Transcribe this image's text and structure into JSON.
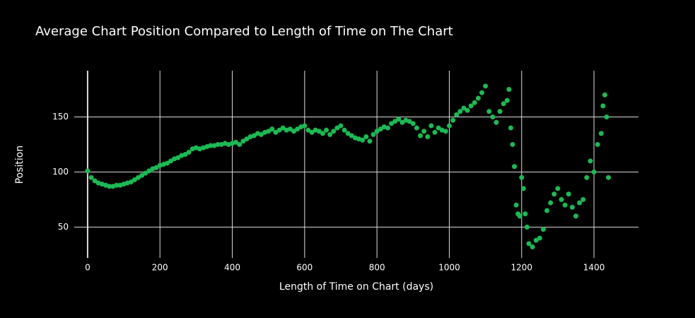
{
  "chart_data": {
    "type": "scatter",
    "title": "Average Chart Position Compared to Length of Time on The Chart",
    "x_label": "Length of Time on Chart (days)",
    "y_label": "Position",
    "series": [
      {
        "name": "Position",
        "color": "#1db954",
        "x": [
          0,
          10,
          20,
          30,
          40,
          50,
          60,
          70,
          80,
          90,
          100,
          110,
          120,
          130,
          140,
          150,
          160,
          170,
          180,
          190,
          200,
          210,
          220,
          230,
          240,
          250,
          260,
          270,
          280,
          290,
          300,
          310,
          320,
          330,
          340,
          350,
          360,
          370,
          380,
          390,
          400,
          410,
          420,
          430,
          440,
          450,
          460,
          470,
          480,
          490,
          500,
          510,
          520,
          530,
          540,
          550,
          560,
          570,
          580,
          590,
          600,
          610,
          620,
          630,
          640,
          650,
          660,
          670,
          680,
          690,
          700,
          710,
          720,
          730,
          740,
          750,
          760,
          770,
          780,
          790,
          800,
          810,
          820,
          830,
          840,
          850,
          860,
          870,
          880,
          890,
          900,
          910,
          920,
          930,
          940,
          950,
          960,
          970,
          980,
          990,
          1000,
          1010,
          1020,
          1030,
          1040,
          1050,
          1060,
          1070,
          1080,
          1090,
          1100,
          1110,
          1120,
          1130,
          1140,
          1150,
          1160,
          1165,
          1170,
          1175,
          1180,
          1185,
          1190,
          1195,
          1200,
          1205,
          1210,
          1215,
          1220,
          1230,
          1240,
          1250,
          1260,
          1270,
          1280,
          1290,
          1300,
          1310,
          1320,
          1330,
          1340,
          1350,
          1360,
          1370,
          1380,
          1390,
          1400,
          1410,
          1420,
          1425,
          1430,
          1435,
          1440
        ],
        "values": [
          101,
          95,
          92,
          90,
          89,
          88,
          87,
          87,
          88,
          88,
          89,
          90,
          91,
          93,
          95,
          97,
          99,
          101,
          103,
          104,
          106,
          107,
          108,
          110,
          112,
          113,
          115,
          116,
          118,
          121,
          122,
          121,
          122,
          123,
          124,
          124,
          125,
          125,
          126,
          125,
          126,
          127,
          125,
          128,
          130,
          132,
          133,
          135,
          134,
          136,
          137,
          139,
          136,
          138,
          140,
          138,
          139,
          137,
          139,
          141,
          142,
          138,
          136,
          138,
          137,
          135,
          138,
          134,
          137,
          140,
          142,
          138,
          135,
          133,
          131,
          130,
          129,
          132,
          128,
          134,
          137,
          139,
          141,
          140,
          144,
          146,
          148,
          145,
          147,
          146,
          144,
          140,
          133,
          137,
          132,
          142,
          136,
          140,
          138,
          137,
          142,
          147,
          152,
          155,
          158,
          156,
          160,
          163,
          167,
          172,
          178,
          155,
          150,
          145,
          155,
          162,
          165,
          175,
          140,
          125,
          105,
          70,
          62,
          60,
          95,
          85,
          62,
          50,
          35,
          32,
          38,
          40,
          48,
          65,
          72,
          80,
          85,
          75,
          70,
          80,
          68,
          60,
          72,
          75,
          95,
          110,
          100,
          125,
          135,
          160,
          170,
          150,
          95
        ]
      }
    ],
    "xlim": [
      -37,
      1523
    ],
    "ylim": [
      22,
      192
    ],
    "xticks": [
      0,
      200,
      400,
      600,
      800,
      1000,
      1200,
      1400
    ],
    "yticks": [
      50,
      100,
      150
    ],
    "grid": true
  }
}
